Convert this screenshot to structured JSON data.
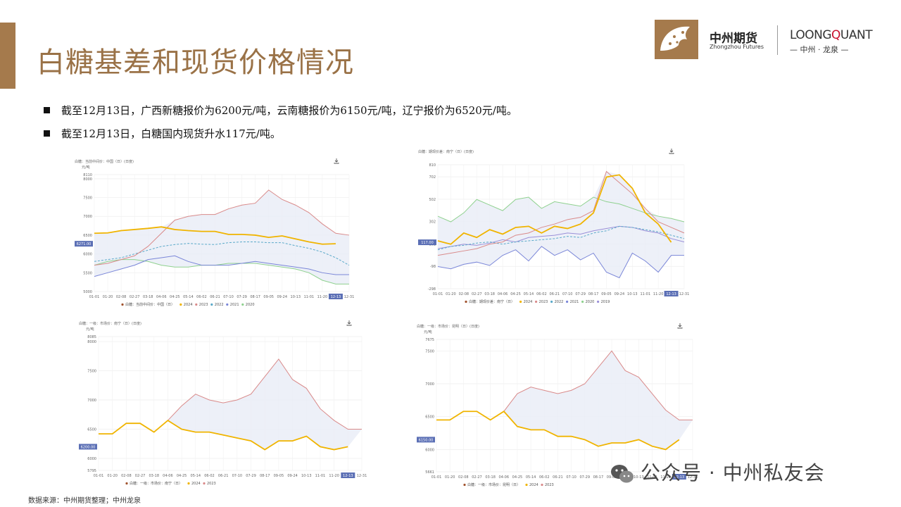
{
  "header": {
    "title": "白糖基差和现货价格情况",
    "brand_cn": "中州期货",
    "brand_en": "Zhongzhou Futures",
    "brand_lq_prefix": "LOONG",
    "brand_lq_q": "Q",
    "brand_lq_suffix": "UANT",
    "brand_lq_sub": "— 中州 · 龙泉 —"
  },
  "bullets": [
    "截至12月13日，广西新糖报价为6200元/吨，云南糖报价为6150元/吨，辽宁报价为6520元/吨。",
    "截至12月13日，白糖国内现货升水117元/吨。"
  ],
  "footer": {
    "source": "数据来源：中州期货整理；中州龙泉"
  },
  "wechat": {
    "label": "公众号 · 中州私友会"
  },
  "colors": {
    "accent": "#a57a4c",
    "y2024": "#f0b400",
    "y2023": "#d98a8a",
    "y2022": "#5aa9c9",
    "y2021": "#7a86d8",
    "y2020": "#8fd18f",
    "y2019": "#9a8fd8"
  },
  "chart_data": [
    {
      "type": "line",
      "title": "白糖：当前中间价：中国（日）(日度)",
      "ylabel": "元/吨",
      "ylim": [
        5000,
        8110
      ],
      "y_ticks": [
        "8110",
        "8000",
        "7500",
        "7000",
        "6500",
        "6000",
        "5500",
        "5000"
      ],
      "x_ticks": [
        "01-01",
        "01-20",
        "02-08",
        "02-27",
        "03-18",
        "04-06",
        "04-25",
        "05-14",
        "06-02",
        "06-21",
        "07-10",
        "07-29",
        "08-17",
        "09-05",
        "09-24",
        "10-13",
        "11-01",
        "11-20",
        "12-13",
        "12-31"
      ],
      "current_label": "6271.00",
      "current_x_tag": "12-13",
      "legend_prefix": "白糖：当前中间价：中国（日）",
      "series": [
        {
          "name": "2024",
          "color": "#f0b400",
          "values": [
            6550,
            6560,
            6620,
            6650,
            6680,
            6720,
            6650,
            6620,
            6600,
            6600,
            6520,
            6520,
            6500,
            6440,
            6480,
            6400,
            6320,
            6260,
            6271
          ]
        },
        {
          "name": "2023",
          "color": "#d98a8a",
          "values": [
            5700,
            5750,
            5850,
            5950,
            6200,
            6550,
            6900,
            7000,
            7050,
            7050,
            7200,
            7300,
            7350,
            7700,
            7450,
            7300,
            7100,
            6800,
            6550,
            6500
          ]
        },
        {
          "name": "2022",
          "color": "#5aa9c9",
          "values": [
            5800,
            5850,
            5900,
            6000,
            6100,
            6200,
            6250,
            6280,
            6260,
            6250,
            6300,
            6320,
            6320,
            6300,
            6300,
            6220,
            6150,
            6050,
            5900,
            5700
          ]
        },
        {
          "name": "2021",
          "color": "#7a86d8",
          "values": [
            5400,
            5500,
            5600,
            5700,
            5850,
            5900,
            5950,
            5800,
            5700,
            5700,
            5700,
            5750,
            5800,
            5750,
            5700,
            5650,
            5600,
            5500,
            5450,
            5450
          ]
        },
        {
          "name": "2020",
          "color": "#8fd18f",
          "values": [
            5700,
            5800,
            5850,
            5850,
            5800,
            5700,
            5650,
            5650,
            5700,
            5700,
            5750,
            5750,
            5750,
            5700,
            5650,
            5600,
            5500,
            5300,
            5200,
            5200
          ]
        }
      ]
    },
    {
      "type": "line",
      "title": "白糖：期现价差：南宁（日）(日度)",
      "ylabel": "",
      "ylim": [
        -298,
        810
      ],
      "y_ticks": [
        "810",
        "702",
        "502",
        "302",
        "102",
        "-98",
        "-298"
      ],
      "x_ticks": [
        "01-01",
        "01-20",
        "02-08",
        "02-27",
        "03-18",
        "04-06",
        "04-25",
        "05-14",
        "06-02",
        "06-21",
        "07-10",
        "07-29",
        "08-17",
        "09-05",
        "09-24",
        "10-13",
        "11-01",
        "11-20",
        "12-13",
        "12-31"
      ],
      "current_label": "117.00",
      "current_x_tag": "12-13",
      "legend_prefix": "白糖：期现价差：南宁（日）",
      "series": [
        {
          "name": "2024",
          "color": "#f0b400",
          "values": [
            130,
            100,
            200,
            160,
            230,
            190,
            250,
            260,
            200,
            260,
            240,
            280,
            380,
            700,
            720,
            600,
            380,
            280,
            117
          ]
        },
        {
          "name": "2023",
          "color": "#d98a8a",
          "values": [
            0,
            20,
            40,
            60,
            100,
            120,
            180,
            200,
            250,
            280,
            320,
            340,
            400,
            750,
            650,
            550,
            420,
            300,
            250,
            200
          ]
        },
        {
          "name": "2022",
          "color": "#5aa9c9",
          "values": [
            50,
            80,
            90,
            110,
            120,
            100,
            120,
            130,
            140,
            150,
            170,
            160,
            200,
            220,
            260,
            250,
            230,
            210,
            180,
            150
          ]
        },
        {
          "name": "2021",
          "color": "#7a86d8",
          "values": [
            -100,
            -120,
            -80,
            -60,
            -90,
            0,
            50,
            -50,
            80,
            0,
            50,
            -40,
            20,
            -150,
            -200,
            20,
            -50,
            -150,
            0,
            0
          ]
        },
        {
          "name": "2020",
          "color": "#8fd18f",
          "values": [
            350,
            300,
            380,
            500,
            450,
            400,
            500,
            520,
            420,
            480,
            460,
            440,
            520,
            480,
            460,
            420,
            380,
            350,
            330,
            300
          ]
        },
        {
          "name": "2019",
          "color": "#9a8fd8",
          "values": [
            60,
            80,
            100,
            90,
            110,
            140,
            120,
            160,
            170,
            180,
            200,
            190,
            220,
            240,
            260,
            250,
            220,
            200,
            150,
            120
          ]
        }
      ]
    },
    {
      "type": "line",
      "title": "白糖：一级：市场价：南宁（日）(日度)",
      "ylabel": "元/吨",
      "ylim": [
        5795,
        8085
      ],
      "y_ticks": [
        "8085",
        "8000",
        "7500",
        "7000",
        "6500",
        "6000",
        "5795"
      ],
      "x_ticks": [
        "01-01",
        "01-20",
        "02-08",
        "02-27",
        "03-18",
        "04-06",
        "04-25",
        "05-14",
        "06-02",
        "06-21",
        "07-10",
        "07-29",
        "08-17",
        "09-05",
        "09-24",
        "10-13",
        "11-01",
        "11-20",
        "12-13",
        "12-31"
      ],
      "current_label": "6200.00",
      "current_x_tag": "12-13",
      "legend_prefix": "白糖：一级：市场价：南宁（日）",
      "series": [
        {
          "name": "2024",
          "color": "#f0b400",
          "values": [
            6420,
            6420,
            6600,
            6600,
            6450,
            6650,
            6500,
            6450,
            6450,
            6400,
            6350,
            6300,
            6150,
            6300,
            6300,
            6380,
            6200,
            6150,
            6200
          ]
        },
        {
          "name": "2023",
          "color": "#d98a8a",
          "values": [
            6420,
            6420,
            6600,
            6600,
            6450,
            6650,
            6900,
            7100,
            7000,
            6950,
            7000,
            7100,
            7400,
            7700,
            7350,
            7200,
            6850,
            6650,
            6500,
            6500
          ]
        }
      ]
    },
    {
      "type": "line",
      "title": "白糖：一级：市场价：昆明（日）(日度)",
      "ylabel": "元/吨",
      "ylim": [
        5661,
        7675
      ],
      "y_ticks": [
        "7675",
        "7500",
        "7000",
        "6500",
        "6000",
        "5661"
      ],
      "x_ticks": [
        "01-01",
        "01-20",
        "02-08",
        "02-27",
        "03-18",
        "04-06",
        "04-25",
        "05-14",
        "06-02",
        "06-21",
        "07-10",
        "07-29",
        "08-17",
        "09-05",
        "09-24",
        "10-13",
        "11-01",
        "11-20",
        "12-13",
        "12-31"
      ],
      "current_label": "6150.00",
      "current_x_tag": "12-13",
      "legend_prefix": "白糖：一级：市场价：昆明（日）",
      "series": [
        {
          "name": "2024",
          "color": "#f0b400",
          "values": [
            6450,
            6450,
            6580,
            6580,
            6450,
            6580,
            6350,
            6300,
            6300,
            6200,
            6200,
            6150,
            6050,
            6100,
            6100,
            6150,
            6050,
            6000,
            6150
          ]
        },
        {
          "name": "2023",
          "color": "#d98a8a",
          "values": [
            6450,
            6450,
            6580,
            6580,
            6450,
            6580,
            6850,
            6950,
            6900,
            6850,
            6900,
            7000,
            7250,
            7500,
            7200,
            7100,
            6850,
            6600,
            6450,
            6450
          ]
        }
      ]
    }
  ]
}
